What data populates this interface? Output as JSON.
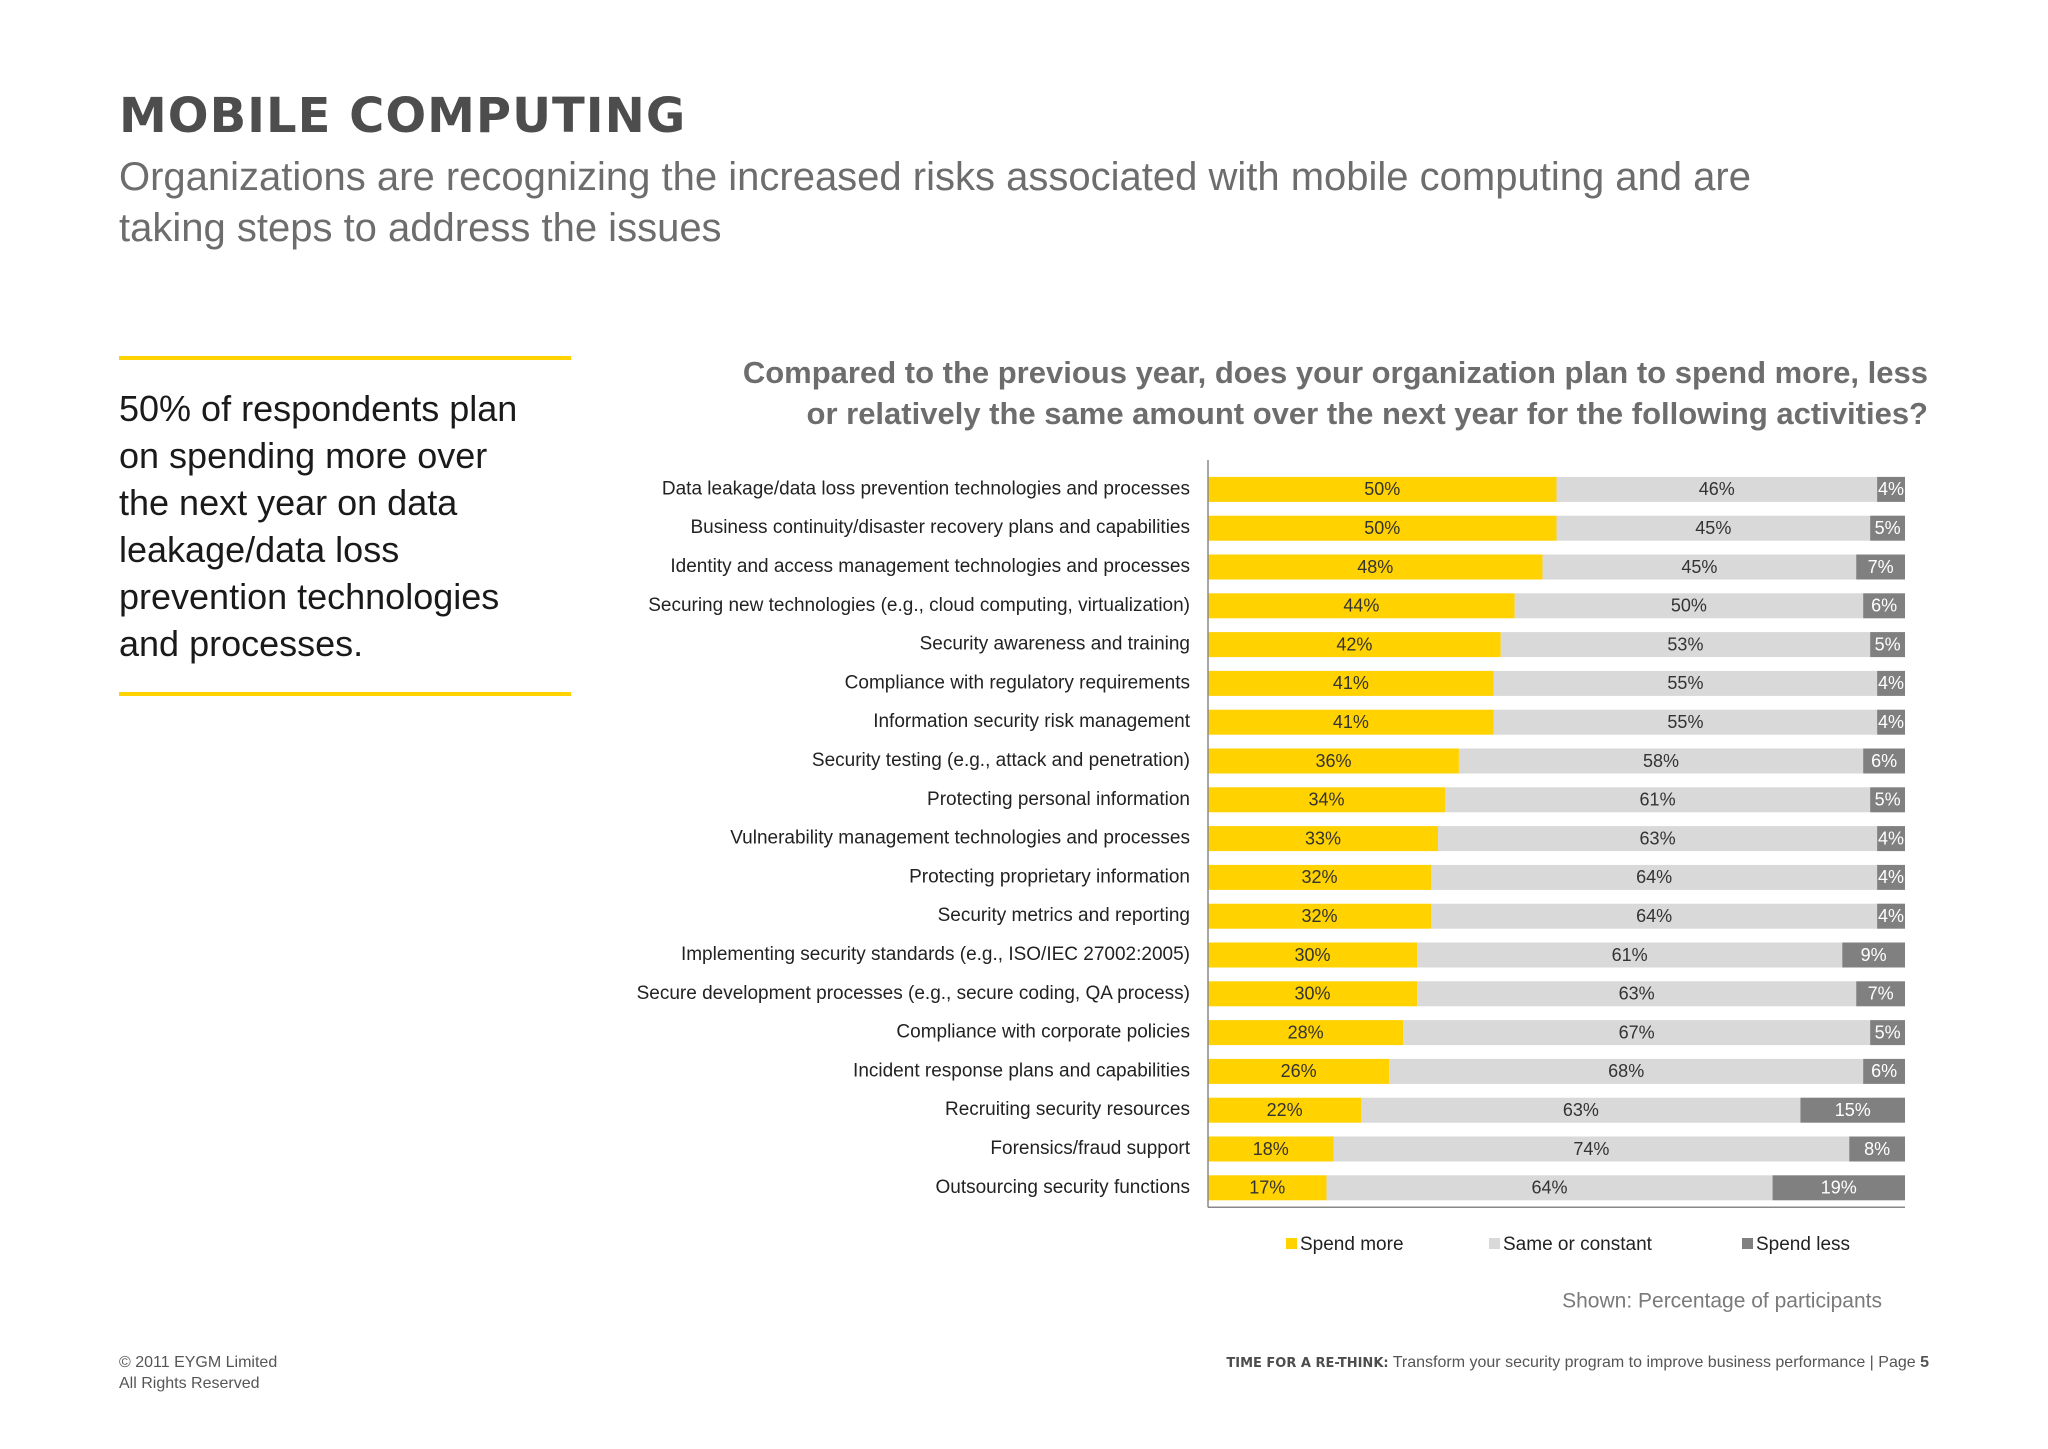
{
  "header": {
    "title": "MOBILE COMPUTING",
    "subtitle": [
      "Organizations are recognizing the increased risks associated with mobile computing and are",
      "taking steps to address the issues"
    ]
  },
  "callout": [
    "50% of respondents plan",
    "on spending more over",
    "the next year on data",
    "leakage/data loss",
    "prevention technologies",
    "and processes."
  ],
  "chart_data": {
    "type": "stacked_bar",
    "title": [
      "Compared to the previous year, does your organization plan to spend more, less",
      "or relatively the same amount over the next year for the following activities?"
    ],
    "categories": [
      "Data leakage/data loss prevention technologies and processes",
      "Business continuity/disaster recovery plans and capabilities",
      "Identity and access management technologies and processes",
      "Securing new technologies (e.g., cloud computing, virtualization)",
      "Security awareness and training",
      "Compliance with regulatory requirements",
      "Information security risk management",
      "Security testing (e.g., attack and penetration)",
      "Protecting personal information",
      "Vulnerability management technologies and processes",
      "Protecting proprietary information",
      "Security metrics and reporting",
      "Implementing security standards (e.g., ISO/IEC 27002:2005)",
      "Secure development processes (e.g., secure coding, QA process)",
      "Compliance with corporate policies",
      "Incident response plans and capabilities",
      "Recruiting security resources",
      "Forensics/fraud support",
      "Outsourcing security functions"
    ],
    "series": [
      {
        "name": "Spend more",
        "color": "#ffd200",
        "label_color": "#333333",
        "values": [
          50,
          50,
          48,
          44,
          42,
          41,
          41,
          36,
          34,
          33,
          32,
          32,
          30,
          30,
          28,
          26,
          22,
          18,
          17
        ],
        "value_labels": [
          "50%",
          "50%",
          "48%",
          "44%",
          "42%",
          "41%",
          "41%",
          "36%",
          "34%",
          "33%",
          "32%",
          "32%",
          "30%",
          "30%",
          "28%",
          "26%",
          "22%",
          "18%",
          "17%"
        ]
      },
      {
        "name": "Same or constant",
        "color": "#d9d9d9",
        "label_color": "#333333",
        "values": [
          46,
          45,
          45,
          50,
          53,
          55,
          55,
          58,
          61,
          63,
          64,
          64,
          61,
          63,
          67,
          68,
          63,
          74,
          64
        ],
        "value_labels": [
          "46%",
          "45%",
          "45%",
          "50%",
          "53%",
          "55%",
          "55%",
          "58%",
          "61%",
          "63%",
          "64%",
          "64%",
          "61%",
          "63%",
          "67%",
          "68%",
          "63%",
          "74%",
          "64%"
        ]
      },
      {
        "name": "Spend less",
        "color": "#808080",
        "label_color": "#ffffff",
        "values": [
          4,
          5,
          7,
          6,
          5,
          4,
          4,
          6,
          5,
          4,
          4,
          4,
          9,
          7,
          5,
          6,
          15,
          8,
          19
        ],
        "value_labels": [
          "4%",
          "5%",
          "7%",
          "6%",
          "5%",
          "4%",
          "4%",
          "6%",
          "5%",
          "4%",
          "4%",
          "4%",
          "9%",
          "7%",
          "5%",
          "6%",
          "15%",
          "8%",
          "19%"
        ]
      }
    ],
    "xlim": [
      0,
      100
    ],
    "note": "Shown: Percentage of participants"
  },
  "footer": {
    "copyright": "© 2011 EYGM Limited",
    "rights": "All Rights Reserved",
    "tagline": "TIME FOR A RE-THINK:",
    "text": "Transform your security program to improve business performance",
    "page_label": "| Page",
    "page_number": "5"
  }
}
